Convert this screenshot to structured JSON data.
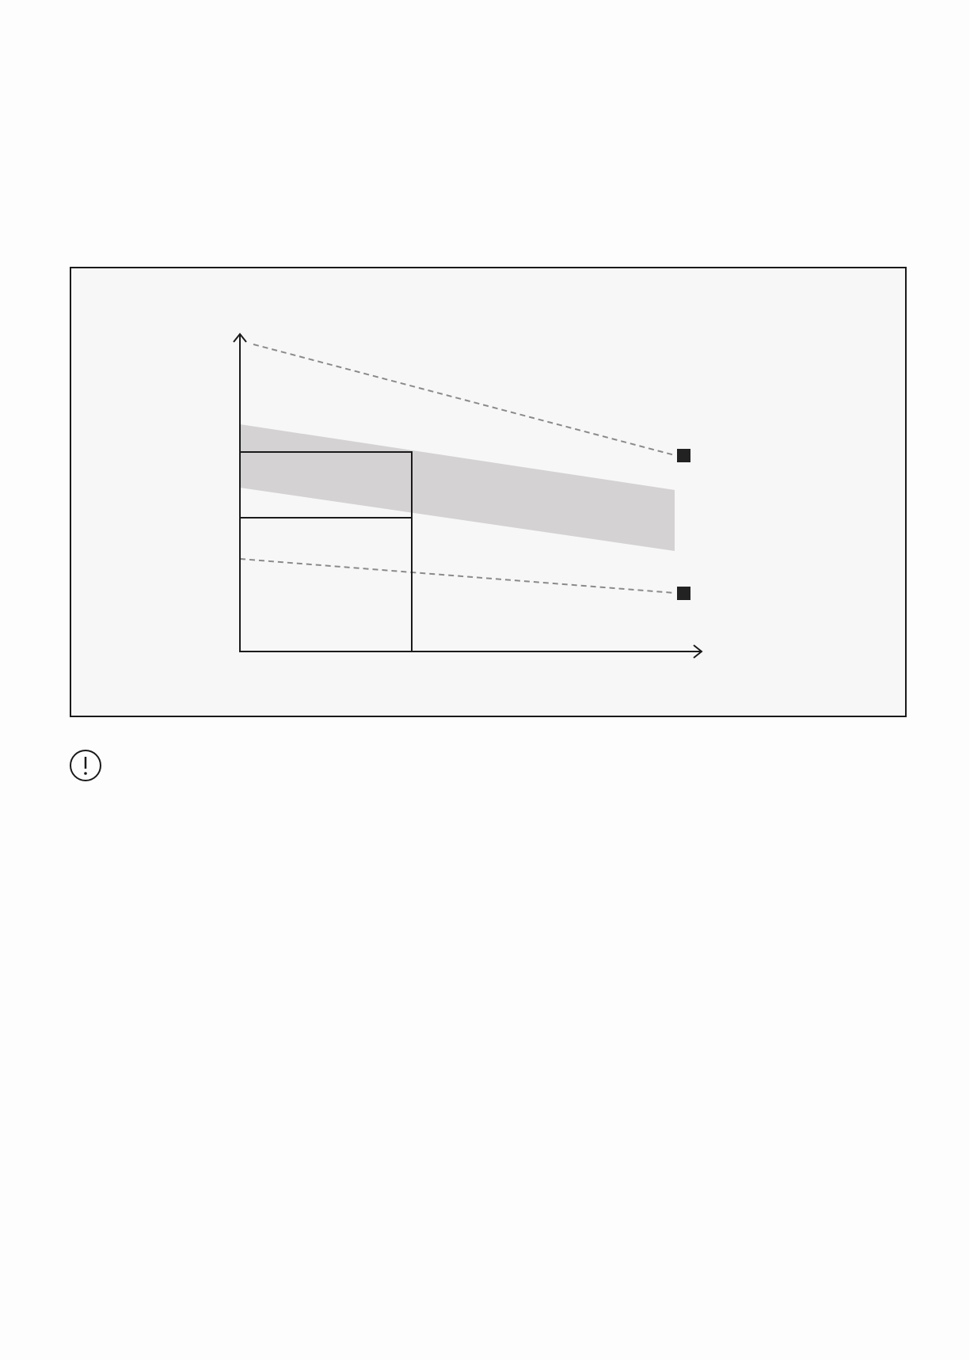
{
  "diagram": {
    "colors": {
      "background": "#fdfdfd",
      "panel_fill": "#f7f7f7",
      "stroke": "#1a1a1a",
      "band_fill": "#d4d2d2",
      "dashed_line": "#8a8a8a",
      "marker": "#222222"
    },
    "icons": [
      "alert-circle-icon"
    ]
  }
}
